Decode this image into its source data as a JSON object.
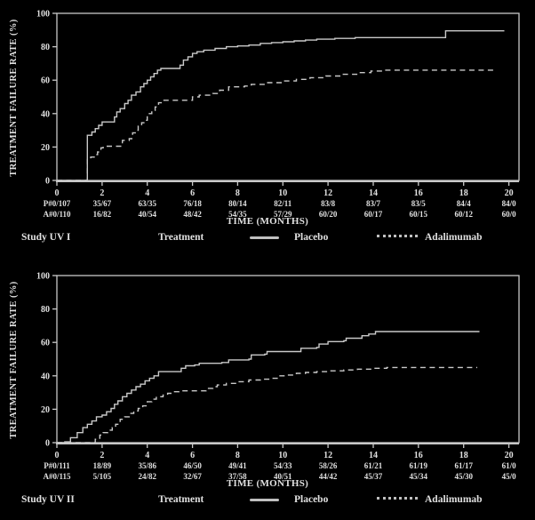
{
  "colors": {
    "background": "#000000",
    "text": "#e0e0e0",
    "axis": "#c8c8c8",
    "line": "#c9c9c9",
    "swatch": "#c0c0c0"
  },
  "chart_data": [
    {
      "type": "line",
      "title": "Study UV I",
      "xlabel": "TIME (MONTHS)",
      "ylabel": "TREATMENT FAILURE RATE (%)",
      "xlim": [
        0,
        20.45
      ],
      "ylim": [
        0,
        100
      ],
      "x_ticks": [
        0,
        2,
        4,
        6,
        8,
        10,
        12,
        14,
        16,
        18,
        20
      ],
      "y_ticks": [
        0,
        20,
        40,
        60,
        80,
        100
      ],
      "grid": false,
      "legend": {
        "heading": "Treatment",
        "entries": [
          {
            "label": "Placebo",
            "style": "solid"
          },
          {
            "label": "Adalimumab",
            "style": "dashed"
          }
        ]
      },
      "at_risk": {
        "note": "events/number at risk shown under each month tick",
        "rows": [
          {
            "name": "Placebo",
            "values": [
              "P#0/107",
              "35/67",
              "63/35",
              "76/18",
              "80/14",
              "82/11",
              "83/8",
              "83/7",
              "83/5",
              "84/4",
              "84/0"
            ]
          },
          {
            "name": "Adalimumab",
            "values": [
              "A#0/110",
              "16/82",
              "40/54",
              "48/42",
              "54/35",
              "57/29",
              "60/20",
              "60/17",
              "60/15",
              "60/12",
              "60/0"
            ]
          }
        ]
      },
      "series": [
        {
          "name": "Placebo",
          "line": "solid",
          "step": true,
          "points": [
            [
              0,
              0
            ],
            [
              1.35,
              0
            ],
            [
              1.35,
              27
            ],
            [
              1.55,
              29
            ],
            [
              1.7,
              31
            ],
            [
              1.85,
              33
            ],
            [
              2.0,
              35
            ],
            [
              2.5,
              35
            ],
            [
              2.55,
              38
            ],
            [
              2.65,
              41
            ],
            [
              2.8,
              43
            ],
            [
              3.0,
              46
            ],
            [
              3.15,
              48
            ],
            [
              3.3,
              51
            ],
            [
              3.5,
              53
            ],
            [
              3.7,
              56
            ],
            [
              3.85,
              58
            ],
            [
              4.0,
              60
            ],
            [
              4.15,
              62
            ],
            [
              4.3,
              64
            ],
            [
              4.45,
              66
            ],
            [
              4.6,
              67
            ],
            [
              5.3,
              67
            ],
            [
              5.45,
              69
            ],
            [
              5.6,
              72
            ],
            [
              5.8,
              74
            ],
            [
              6.0,
              76
            ],
            [
              6.2,
              77
            ],
            [
              6.5,
              78
            ],
            [
              7.0,
              79
            ],
            [
              7.5,
              80
            ],
            [
              8.0,
              80.5
            ],
            [
              8.5,
              81
            ],
            [
              9.0,
              82
            ],
            [
              9.5,
              82.5
            ],
            [
              10.0,
              83
            ],
            [
              10.5,
              83.5
            ],
            [
              11.0,
              84
            ],
            [
              11.5,
              84.5
            ],
            [
              12.3,
              85
            ],
            [
              13.2,
              85.5
            ],
            [
              17.2,
              85.5
            ],
            [
              17.2,
              89.5
            ],
            [
              19.8,
              89.5
            ]
          ]
        },
        {
          "name": "Adalimumab",
          "line": "dashed",
          "step": true,
          "points": [
            [
              0,
              0
            ],
            [
              1.35,
              0
            ],
            [
              1.35,
              13
            ],
            [
              1.5,
              14
            ],
            [
              1.65,
              15.5
            ],
            [
              1.8,
              17
            ],
            [
              1.95,
              19.5
            ],
            [
              2.05,
              20.5
            ],
            [
              2.85,
              20.5
            ],
            [
              2.9,
              24
            ],
            [
              3.2,
              25
            ],
            [
              3.35,
              28.5
            ],
            [
              3.5,
              30
            ],
            [
              3.6,
              32.5
            ],
            [
              3.75,
              34.5
            ],
            [
              3.9,
              36
            ],
            [
              4.0,
              40
            ],
            [
              4.2,
              42
            ],
            [
              4.35,
              44
            ],
            [
              4.5,
              46.5
            ],
            [
              4.7,
              48
            ],
            [
              5.9,
              48
            ],
            [
              6.0,
              50
            ],
            [
              6.3,
              51
            ],
            [
              6.9,
              52
            ],
            [
              7.2,
              54
            ],
            [
              7.6,
              56
            ],
            [
              8.3,
              56.5
            ],
            [
              8.6,
              57.5
            ],
            [
              9.3,
              58.5
            ],
            [
              10.0,
              59.5
            ],
            [
              10.6,
              60.5
            ],
            [
              11.2,
              61.5
            ],
            [
              11.9,
              62.5
            ],
            [
              12.6,
              63.5
            ],
            [
              13.3,
              64.5
            ],
            [
              13.9,
              65.5
            ],
            [
              14.5,
              66
            ],
            [
              19.4,
              66
            ]
          ]
        }
      ]
    },
    {
      "type": "line",
      "title": "Study UV II",
      "xlabel": "TIME (MONTHS)",
      "ylabel": "TREATMENT FAILURE RATE (%)",
      "xlim": [
        0,
        20.45
      ],
      "ylim": [
        0,
        100
      ],
      "x_ticks": [
        0,
        2,
        4,
        6,
        8,
        10,
        12,
        14,
        16,
        18,
        20
      ],
      "y_ticks": [
        0,
        20,
        40,
        60,
        80,
        100
      ],
      "grid": false,
      "legend": {
        "heading": "Treatment",
        "entries": [
          {
            "label": "Placebo",
            "style": "solid"
          },
          {
            "label": "Adalimumab",
            "style": "dashed"
          }
        ]
      },
      "at_risk": {
        "note": "events/number at risk shown under each month tick",
        "rows": [
          {
            "name": "Placebo",
            "values": [
              "P#0/111",
              "18/89",
              "35/86",
              "46/50",
              "49/41",
              "54/33",
              "58/26",
              "61/21",
              "61/19",
              "61/17",
              "61/0"
            ]
          },
          {
            "name": "Adalimumab",
            "values": [
              "A#0/115",
              "5/105",
              "24/82",
              "32/67",
              "37/58",
              "40/51",
              "44/42",
              "45/37",
              "45/34",
              "45/30",
              "45/0"
            ]
          }
        ]
      },
      "series": [
        {
          "name": "Placebo",
          "line": "solid",
          "step": true,
          "points": [
            [
              0,
              0
            ],
            [
              0.35,
              0.5
            ],
            [
              0.6,
              3
            ],
            [
              0.9,
              6
            ],
            [
              1.15,
              9
            ],
            [
              1.35,
              11
            ],
            [
              1.55,
              13
            ],
            [
              1.75,
              15.5
            ],
            [
              2.0,
              16.5
            ],
            [
              2.2,
              18.5
            ],
            [
              2.4,
              20.5
            ],
            [
              2.55,
              23
            ],
            [
              2.7,
              25
            ],
            [
              2.9,
              27.5
            ],
            [
              3.1,
              29.5
            ],
            [
              3.3,
              31.5
            ],
            [
              3.5,
              33.5
            ],
            [
              3.7,
              35
            ],
            [
              3.9,
              37
            ],
            [
              4.1,
              38.5
            ],
            [
              4.3,
              40
            ],
            [
              4.5,
              42.5
            ],
            [
              5.3,
              42.5
            ],
            [
              5.5,
              44.5
            ],
            [
              5.7,
              46
            ],
            [
              6.1,
              46.5
            ],
            [
              6.3,
              47.5
            ],
            [
              7.3,
              48
            ],
            [
              7.6,
              49.5
            ],
            [
              8.5,
              50
            ],
            [
              8.6,
              52.5
            ],
            [
              9.2,
              53
            ],
            [
              9.3,
              54.5
            ],
            [
              10.7,
              54.5
            ],
            [
              10.8,
              56.5
            ],
            [
              11.5,
              57
            ],
            [
              11.6,
              59
            ],
            [
              12.0,
              60.5
            ],
            [
              12.7,
              61
            ],
            [
              12.8,
              62.5
            ],
            [
              13.4,
              62.5
            ],
            [
              13.5,
              64
            ],
            [
              13.8,
              65
            ],
            [
              14.1,
              66.5
            ],
            [
              18.7,
              66.5
            ]
          ]
        },
        {
          "name": "Adalimumab",
          "line": "dashed",
          "step": true,
          "points": [
            [
              0,
              0
            ],
            [
              1.5,
              0
            ],
            [
              1.7,
              2
            ],
            [
              1.9,
              4.5
            ],
            [
              2.05,
              6
            ],
            [
              2.25,
              7.5
            ],
            [
              2.45,
              9
            ],
            [
              2.6,
              11
            ],
            [
              2.8,
              14
            ],
            [
              3.0,
              15.5
            ],
            [
              3.2,
              17.5
            ],
            [
              3.4,
              19
            ],
            [
              3.6,
              20.5
            ],
            [
              3.8,
              22
            ],
            [
              4.0,
              24.5
            ],
            [
              4.2,
              26
            ],
            [
              4.4,
              27.5
            ],
            [
              4.7,
              28.5
            ],
            [
              4.9,
              29.5
            ],
            [
              5.1,
              30.5
            ],
            [
              5.4,
              31
            ],
            [
              6.4,
              31
            ],
            [
              6.6,
              32.5
            ],
            [
              6.9,
              33.5
            ],
            [
              7.1,
              34.5
            ],
            [
              7.5,
              35.5
            ],
            [
              8.0,
              36.5
            ],
            [
              8.5,
              37.5
            ],
            [
              9.0,
              38
            ],
            [
              9.5,
              38.5
            ],
            [
              9.8,
              40
            ],
            [
              10.2,
              40.5
            ],
            [
              10.6,
              41.5
            ],
            [
              11.0,
              42
            ],
            [
              11.5,
              42.5
            ],
            [
              12.0,
              43
            ],
            [
              12.7,
              43.5
            ],
            [
              13.3,
              44
            ],
            [
              14.0,
              44.5
            ],
            [
              14.6,
              45
            ],
            [
              18.6,
              45
            ]
          ]
        }
      ]
    }
  ]
}
